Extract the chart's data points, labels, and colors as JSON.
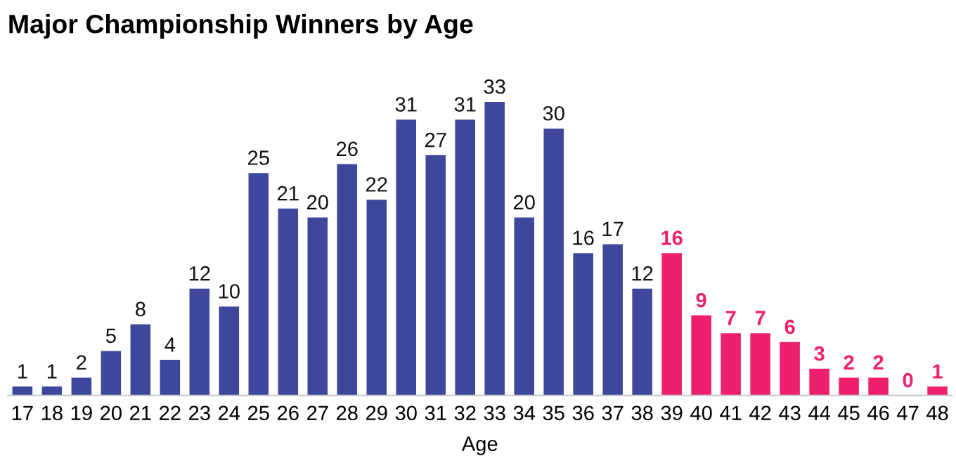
{
  "chart_data": {
    "type": "bar",
    "title": "Major Championship Winners by Age",
    "xlabel": "Age",
    "categories": [
      "17",
      "18",
      "19",
      "20",
      "21",
      "22",
      "23",
      "24",
      "25",
      "26",
      "27",
      "28",
      "29",
      "30",
      "31",
      "32",
      "33",
      "34",
      "35",
      "36",
      "37",
      "38",
      "39",
      "40",
      "41",
      "42",
      "43",
      "44",
      "45",
      "46",
      "47",
      "48"
    ],
    "series": [
      {
        "color": "#3f479d",
        "values": [
          1,
          1,
          2,
          5,
          8,
          4,
          12,
          10,
          25,
          21,
          20,
          26,
          22,
          31,
          27,
          31,
          33,
          20,
          30,
          16,
          17,
          12,
          null,
          null,
          null,
          null,
          null,
          null,
          null,
          null,
          null,
          null
        ]
      },
      {
        "color": "#ee1f6d",
        "values": [
          null,
          null,
          null,
          null,
          null,
          null,
          null,
          null,
          null,
          null,
          null,
          null,
          null,
          null,
          null,
          null,
          null,
          null,
          null,
          null,
          null,
          null,
          16,
          9,
          7,
          7,
          6,
          3,
          2,
          2,
          0,
          1
        ]
      }
    ],
    "data_labels": true,
    "grid": false,
    "legend": false
  }
}
